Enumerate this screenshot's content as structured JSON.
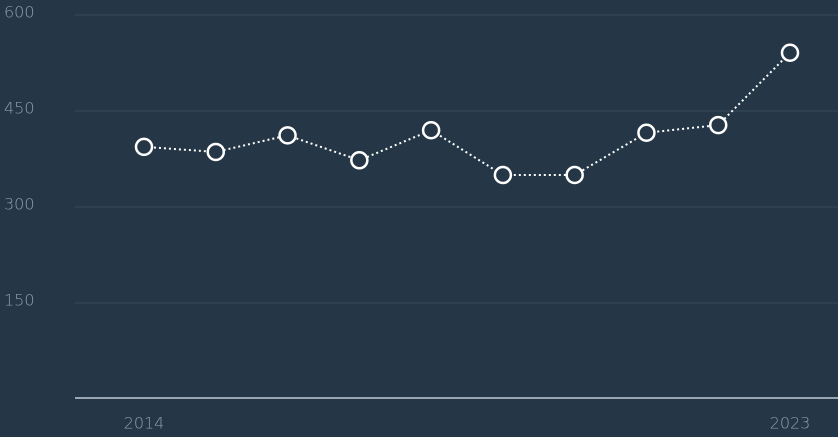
{
  "chart_data": {
    "type": "line",
    "categories": [
      "2014",
      null,
      null,
      null,
      null,
      null,
      null,
      null,
      null,
      "2023"
    ],
    "values": [
      394,
      386,
      412,
      373,
      420,
      350,
      350,
      416,
      428,
      541
    ],
    "color": "#ffffff",
    "ylim": [
      0,
      600
    ],
    "yticks": [
      150,
      300,
      450,
      600
    ],
    "grid": true
  }
}
